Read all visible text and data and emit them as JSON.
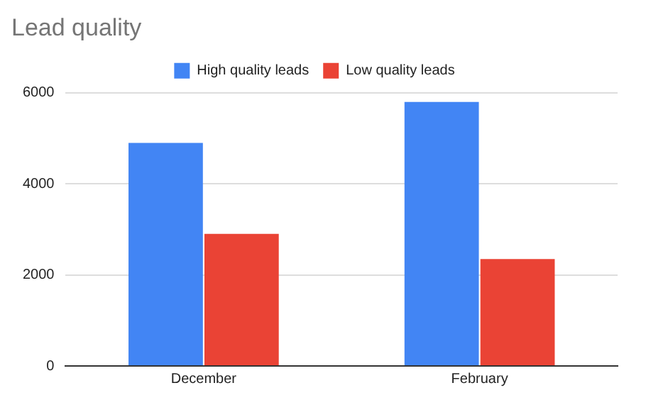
{
  "chart_data": {
    "type": "bar",
    "title": "Lead quality",
    "categories": [
      "December",
      "February"
    ],
    "series": [
      {
        "name": "High quality leads",
        "color": "#4285f4",
        "values": [
          4900,
          5800
        ]
      },
      {
        "name": "Low quality leads",
        "color": "#ea4335",
        "values": [
          2900,
          2350
        ]
      }
    ],
    "ylim": [
      0,
      6000
    ],
    "yticks": [
      0,
      2000,
      4000,
      6000
    ],
    "grid": "y",
    "legend": "top"
  }
}
